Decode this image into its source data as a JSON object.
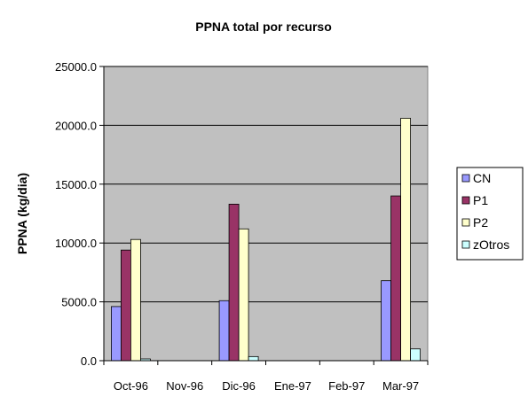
{
  "chart_data": {
    "type": "bar",
    "title": "PPNA total por recurso",
    "xlabel": "",
    "ylabel": "PPNA (kg/dia)",
    "ylim": [
      0,
      25000
    ],
    "yticks": [
      "0.0",
      "5000.0",
      "10000.0",
      "15000.0",
      "20000.0",
      "25000.0"
    ],
    "categories": [
      "Oct-96",
      "Nov-96",
      "Dic-96",
      "Ene-97",
      "Feb-97",
      "Mar-97"
    ],
    "series": [
      {
        "name": "CN",
        "color": "#9999FF",
        "values": [
          4600,
          0,
          5100,
          0,
          0,
          6800
        ]
      },
      {
        "name": "P1",
        "color": "#993366",
        "values": [
          9400,
          0,
          13300,
          0,
          0,
          14000
        ]
      },
      {
        "name": "P2",
        "color": "#FFFFCC",
        "values": [
          10300,
          0,
          11200,
          0,
          0,
          20600
        ]
      },
      {
        "name": "zOtros",
        "color": "#CCFFFF",
        "values": [
          150,
          0,
          350,
          0,
          0,
          1000
        ]
      }
    ],
    "grid": true,
    "plot_background": "#C0C0C0",
    "legend_position": "right"
  }
}
